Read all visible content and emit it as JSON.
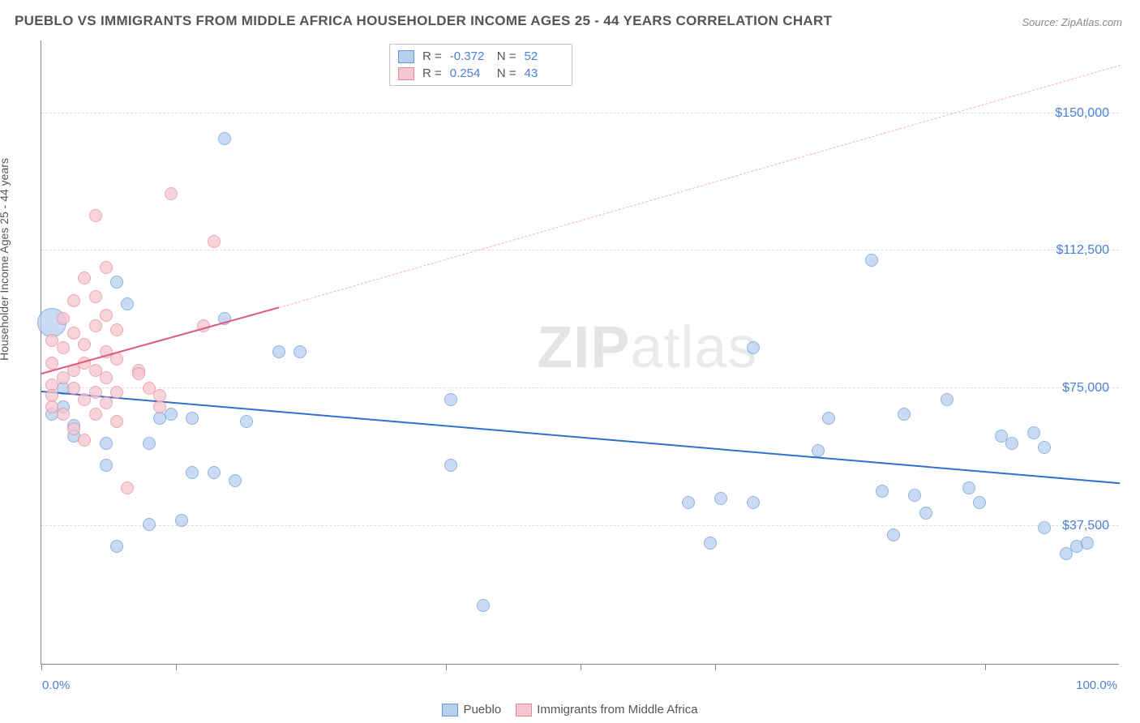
{
  "title": "PUEBLO VS IMMIGRANTS FROM MIDDLE AFRICA HOUSEHOLDER INCOME AGES 25 - 44 YEARS CORRELATION CHART",
  "source": "Source: ZipAtlas.com",
  "watermark_bold": "ZIP",
  "watermark_thin": "atlas",
  "chart": {
    "type": "scatter",
    "ylabel": "Householder Income Ages 25 - 44 years",
    "xlim": [
      0,
      100
    ],
    "ylim": [
      0,
      170000
    ],
    "y_ticks": [
      {
        "v": 37500,
        "label": "$37,500"
      },
      {
        "v": 75000,
        "label": "$75,000"
      },
      {
        "v": 112500,
        "label": "$112,500"
      },
      {
        "v": 150000,
        "label": "$150,000"
      }
    ],
    "x_tick_positions": [
      0,
      12.5,
      37.5,
      50,
      62.5,
      87.5
    ],
    "x_labels": [
      {
        "v": 0,
        "label": "0.0%"
      },
      {
        "v": 100,
        "label": "100.0%"
      }
    ],
    "gridline_color": "#dddddd",
    "background_color": "#ffffff",
    "series": [
      {
        "name": "Pueblo",
        "fill": "#b7cfee",
        "stroke": "#6a9ad6",
        "opacity": 0.75,
        "marker_radius": 8,
        "R": "-0.372",
        "N": "52",
        "trend": {
          "x1": 0,
          "y1": 74000,
          "x2": 100,
          "y2": 49000,
          "color": "#2f6fc9",
          "width": 2
        },
        "points": [
          {
            "x": 1,
            "y": 93000,
            "r": 18
          },
          {
            "x": 2,
            "y": 75000
          },
          {
            "x": 2,
            "y": 70000
          },
          {
            "x": 3,
            "y": 65000
          },
          {
            "x": 1,
            "y": 68000
          },
          {
            "x": 3,
            "y": 62000
          },
          {
            "x": 7,
            "y": 104000
          },
          {
            "x": 8,
            "y": 98000
          },
          {
            "x": 6,
            "y": 60000
          },
          {
            "x": 6,
            "y": 54000
          },
          {
            "x": 7,
            "y": 32000
          },
          {
            "x": 10,
            "y": 38000
          },
          {
            "x": 10,
            "y": 60000
          },
          {
            "x": 11,
            "y": 67000
          },
          {
            "x": 12,
            "y": 68000
          },
          {
            "x": 14,
            "y": 67000
          },
          {
            "x": 13,
            "y": 39000
          },
          {
            "x": 14,
            "y": 52000
          },
          {
            "x": 16,
            "y": 52000
          },
          {
            "x": 17,
            "y": 143000
          },
          {
            "x": 17,
            "y": 94000
          },
          {
            "x": 18,
            "y": 50000
          },
          {
            "x": 19,
            "y": 66000
          },
          {
            "x": 22,
            "y": 85000
          },
          {
            "x": 24,
            "y": 85000
          },
          {
            "x": 38,
            "y": 54000
          },
          {
            "x": 38,
            "y": 72000
          },
          {
            "x": 41,
            "y": 16000
          },
          {
            "x": 60,
            "y": 44000
          },
          {
            "x": 62,
            "y": 33000
          },
          {
            "x": 63,
            "y": 45000
          },
          {
            "x": 66,
            "y": 86000
          },
          {
            "x": 66,
            "y": 44000
          },
          {
            "x": 72,
            "y": 58000
          },
          {
            "x": 73,
            "y": 67000
          },
          {
            "x": 77,
            "y": 110000
          },
          {
            "x": 78,
            "y": 47000
          },
          {
            "x": 79,
            "y": 35000
          },
          {
            "x": 80,
            "y": 68000
          },
          {
            "x": 81,
            "y": 46000
          },
          {
            "x": 82,
            "y": 41000
          },
          {
            "x": 84,
            "y": 72000
          },
          {
            "x": 86,
            "y": 48000
          },
          {
            "x": 87,
            "y": 44000
          },
          {
            "x": 89,
            "y": 62000
          },
          {
            "x": 90,
            "y": 60000
          },
          {
            "x": 92,
            "y": 63000
          },
          {
            "x": 93,
            "y": 59000
          },
          {
            "x": 93,
            "y": 37000
          },
          {
            "x": 95,
            "y": 30000
          },
          {
            "x": 96,
            "y": 32000
          },
          {
            "x": 97,
            "y": 33000
          }
        ]
      },
      {
        "name": "Immigrants from Middle Africa",
        "fill": "#f5c6d0",
        "stroke": "#e68aa0",
        "opacity": 0.75,
        "marker_radius": 8,
        "R": "0.254",
        "N": "43",
        "trend_solid": {
          "x1": 0,
          "y1": 79000,
          "x2": 22,
          "y2": 97000,
          "color": "#e05a7e",
          "width": 1.6
        },
        "trend_dash": {
          "x1": 22,
          "y1": 97000,
          "x2": 100,
          "y2": 163000,
          "color": "#f0b5c2",
          "width": 1.5
        },
        "points": [
          {
            "x": 1,
            "y": 82000
          },
          {
            "x": 1,
            "y": 88000
          },
          {
            "x": 1,
            "y": 76000
          },
          {
            "x": 1,
            "y": 73000
          },
          {
            "x": 1,
            "y": 70000
          },
          {
            "x": 2,
            "y": 68000
          },
          {
            "x": 2,
            "y": 78000
          },
          {
            "x": 2,
            "y": 86000
          },
          {
            "x": 2,
            "y": 94000
          },
          {
            "x": 3,
            "y": 64000
          },
          {
            "x": 3,
            "y": 75000
          },
          {
            "x": 3,
            "y": 80000
          },
          {
            "x": 3,
            "y": 90000
          },
          {
            "x": 3,
            "y": 99000
          },
          {
            "x": 4,
            "y": 61000
          },
          {
            "x": 4,
            "y": 72000
          },
          {
            "x": 4,
            "y": 82000
          },
          {
            "x": 4,
            "y": 87000
          },
          {
            "x": 4,
            "y": 105000
          },
          {
            "x": 5,
            "y": 68000
          },
          {
            "x": 5,
            "y": 74000
          },
          {
            "x": 5,
            "y": 80000
          },
          {
            "x": 5,
            "y": 92000
          },
          {
            "x": 5,
            "y": 100000
          },
          {
            "x": 5,
            "y": 122000
          },
          {
            "x": 6,
            "y": 71000
          },
          {
            "x": 6,
            "y": 78000
          },
          {
            "x": 6,
            "y": 85000
          },
          {
            "x": 6,
            "y": 95000
          },
          {
            "x": 6,
            "y": 108000
          },
          {
            "x": 7,
            "y": 66000
          },
          {
            "x": 7,
            "y": 74000
          },
          {
            "x": 7,
            "y": 83000
          },
          {
            "x": 7,
            "y": 91000
          },
          {
            "x": 8,
            "y": 48000
          },
          {
            "x": 9,
            "y": 80000
          },
          {
            "x": 9,
            "y": 79000
          },
          {
            "x": 10,
            "y": 75000
          },
          {
            "x": 11,
            "y": 73000
          },
          {
            "x": 11,
            "y": 70000
          },
          {
            "x": 12,
            "y": 128000
          },
          {
            "x": 15,
            "y": 92000
          },
          {
            "x": 16,
            "y": 115000
          }
        ]
      }
    ],
    "legend_labels": [
      "Pueblo",
      "Immigrants from Middle Africa"
    ],
    "stats_labels": {
      "R": "R =",
      "N": "N ="
    }
  }
}
